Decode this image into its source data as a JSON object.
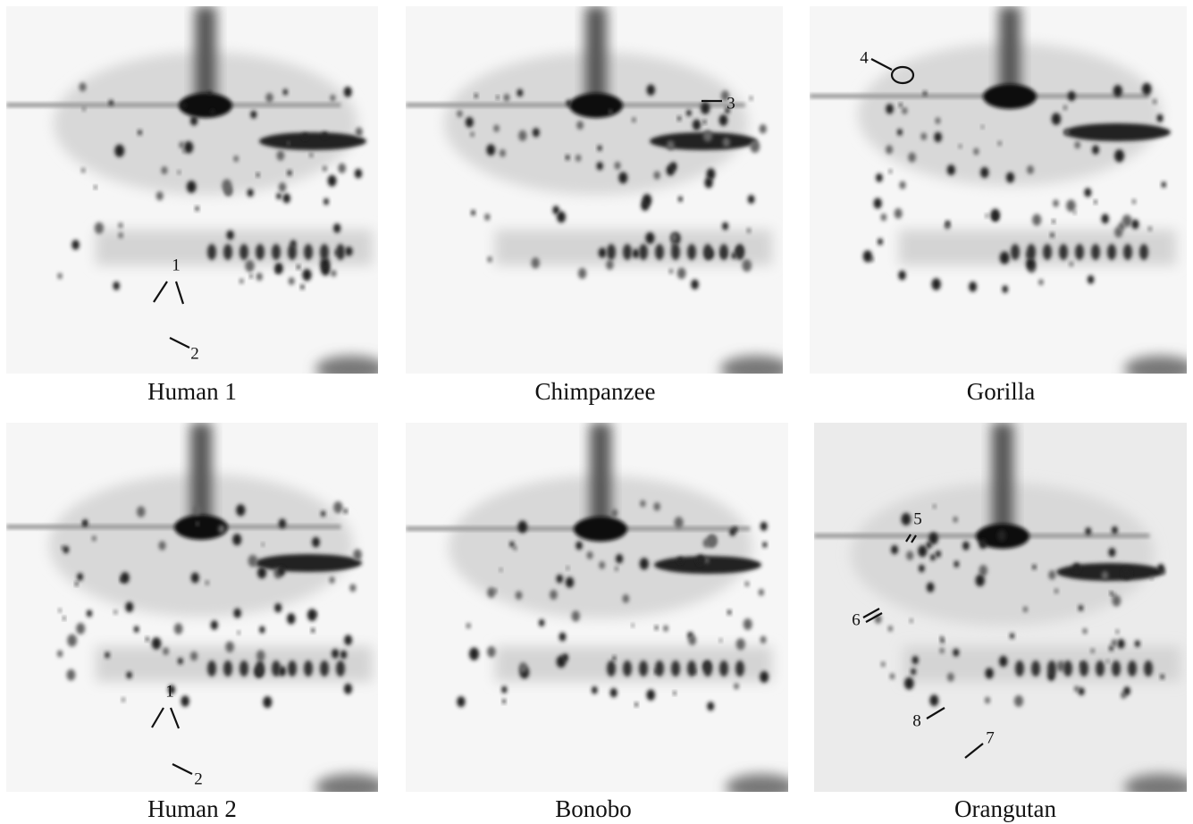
{
  "panels": [
    {
      "label": "Human 1",
      "annotations": [
        "1",
        "2"
      ]
    },
    {
      "label": "Chimpanzee",
      "annotations": [
        "3"
      ]
    },
    {
      "label": "Gorilla",
      "annotations": [
        "4"
      ]
    },
    {
      "label": "Human 2",
      "annotations": [
        "1",
        "2"
      ]
    },
    {
      "label": "Bonobo",
      "annotations": []
    },
    {
      "label": "Orangutan",
      "annotations": [
        "5",
        "6",
        "8",
        "7"
      ]
    }
  ]
}
